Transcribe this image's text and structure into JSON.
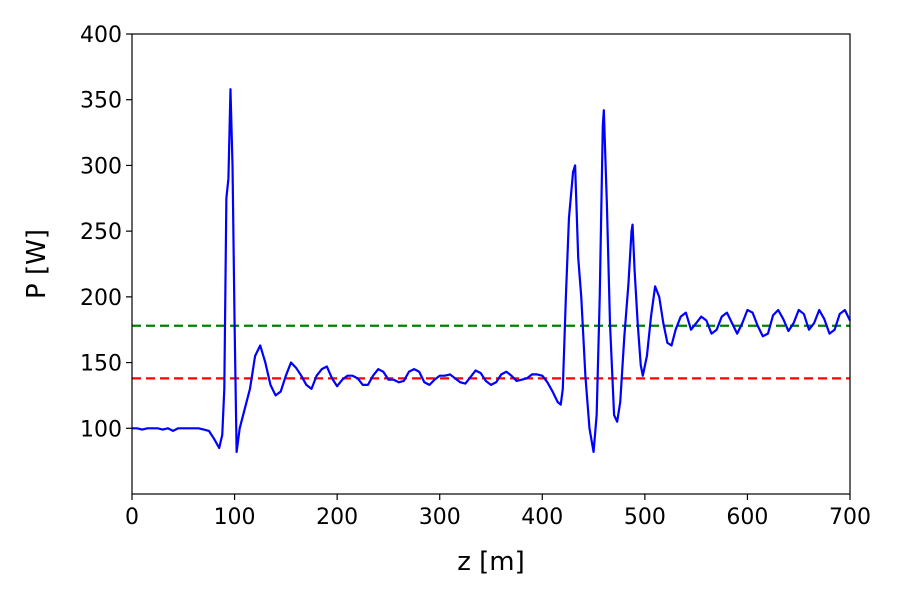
{
  "chart_data": {
    "type": "line",
    "x_label": "z [m]",
    "y_label": "P [W]",
    "xlim": [
      0,
      700
    ],
    "ylim": [
      50,
      400
    ],
    "xticks": [
      0,
      100,
      200,
      300,
      400,
      500,
      600,
      700
    ],
    "yticks": [
      100,
      150,
      200,
      250,
      300,
      350,
      400
    ],
    "x": [
      0,
      5,
      10,
      15,
      20,
      25,
      30,
      35,
      40,
      45,
      50,
      55,
      60,
      65,
      70,
      75,
      80,
      85,
      88,
      90,
      92,
      94,
      96,
      98,
      100,
      102,
      105,
      110,
      115,
      120,
      125,
      130,
      135,
      140,
      145,
      150,
      155,
      160,
      165,
      170,
      175,
      180,
      185,
      190,
      195,
      200,
      205,
      210,
      215,
      220,
      225,
      230,
      235,
      240,
      245,
      250,
      255,
      260,
      265,
      270,
      275,
      280,
      285,
      290,
      295,
      300,
      305,
      310,
      315,
      320,
      325,
      330,
      335,
      340,
      345,
      350,
      355,
      360,
      365,
      370,
      375,
      380,
      385,
      390,
      395,
      400,
      405,
      410,
      415,
      418,
      420,
      423,
      426,
      430,
      432,
      435,
      438,
      442,
      446,
      450,
      453,
      456,
      459,
      460,
      463,
      466,
      470,
      473,
      476,
      480,
      484,
      487,
      488,
      490,
      493,
      496,
      498,
      502,
      506,
      510,
      514,
      518,
      522,
      526,
      530,
      535,
      540,
      545,
      550,
      555,
      560,
      565,
      570,
      575,
      580,
      585,
      590,
      595,
      600,
      605,
      610,
      615,
      620,
      625,
      630,
      635,
      640,
      645,
      650,
      655,
      660,
      665,
      670,
      675,
      680,
      685,
      690,
      695,
      700
    ],
    "series": [
      {
        "color": "#0000ff",
        "values": [
          100,
          100,
          99,
          100,
          100,
          100,
          99,
          100,
          98,
          100,
          100,
          100,
          100,
          100,
          99,
          98,
          92,
          85,
          95,
          130,
          275,
          290,
          358,
          300,
          180,
          82,
          100,
          115,
          130,
          155,
          163,
          150,
          133,
          125,
          128,
          140,
          150,
          146,
          140,
          133,
          130,
          140,
          145,
          147,
          138,
          132,
          137,
          140,
          140,
          138,
          133,
          133,
          140,
          145,
          143,
          137,
          137,
          135,
          136,
          143,
          145,
          143,
          135,
          133,
          137,
          140,
          140,
          141,
          138,
          135,
          134,
          139,
          144,
          142,
          136,
          133,
          135,
          141,
          143,
          140,
          136,
          137,
          138,
          141,
          141,
          140,
          135,
          128,
          120,
          118,
          130,
          200,
          260,
          295,
          300,
          230,
          200,
          140,
          100,
          82,
          110,
          200,
          330,
          342,
          270,
          180,
          110,
          105,
          120,
          170,
          210,
          250,
          255,
          220,
          180,
          148,
          140,
          155,
          185,
          208,
          200,
          180,
          165,
          163,
          175,
          185,
          188,
          175,
          180,
          185,
          182,
          172,
          175,
          185,
          188,
          180,
          172,
          180,
          190,
          188,
          178,
          170,
          172,
          186,
          190,
          183,
          174,
          180,
          190,
          187,
          175,
          180,
          190,
          183,
          172,
          175,
          187,
          190,
          182
        ]
      }
    ],
    "hlines": [
      {
        "value": 178,
        "color": "#008000"
      },
      {
        "value": 138,
        "color": "#ff0000"
      }
    ]
  }
}
